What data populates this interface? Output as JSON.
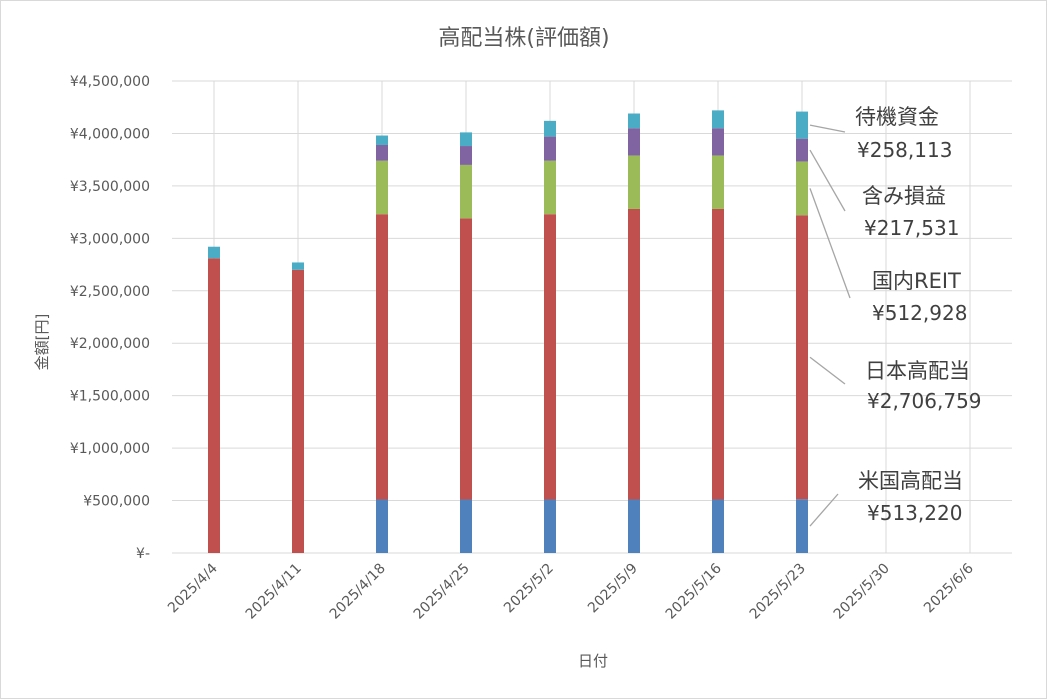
{
  "chart_data": {
    "type": "bar",
    "stacked": true,
    "title": "高配当株(評価額)",
    "xlabel": "日付",
    "ylabel": "金額[円]",
    "ylim": [
      0,
      4500000
    ],
    "y_ticks": [
      "¥-",
      "¥500,000",
      "¥1,000,000",
      "¥1,500,000",
      "¥2,000,000",
      "¥2,500,000",
      "¥3,000,000",
      "¥3,500,000",
      "¥4,000,000",
      "¥4,500,000"
    ],
    "x_ticks": [
      "2025/4/4",
      "2025/4/11",
      "2025/4/18",
      "2025/4/25",
      "2025/5/2",
      "2025/5/9",
      "2025/5/16",
      "2025/5/23",
      "2025/5/30",
      "2025/6/6"
    ],
    "categories": [
      "2025/4/4",
      "2025/4/11",
      "2025/4/18",
      "2025/4/25",
      "2025/5/2",
      "2025/5/9",
      "2025/5/16",
      "2025/5/23"
    ],
    "grid": true,
    "legend": "none",
    "series": [
      {
        "name": "米国高配当",
        "color": "#4f81bd",
        "values": [
          0,
          0,
          510000,
          510000,
          510000,
          510000,
          510000,
          513220
        ]
      },
      {
        "name": "日本高配当",
        "color": "#c0504d",
        "values": [
          2810000,
          2700000,
          2720000,
          2680000,
          2720000,
          2770000,
          2770000,
          2706759
        ]
      },
      {
        "name": "国内REIT",
        "color": "#9bbb59",
        "values": [
          0,
          0,
          510000,
          510000,
          510000,
          510000,
          510000,
          512928
        ]
      },
      {
        "name": "含み損益",
        "color": "#8064a2",
        "values": [
          0,
          0,
          150000,
          180000,
          230000,
          260000,
          260000,
          217531
        ]
      },
      {
        "name": "待機資金",
        "color": "#4bacc6",
        "values": [
          110000,
          70000,
          90000,
          130000,
          150000,
          140000,
          170000,
          258113
        ]
      }
    ],
    "annotations": [
      {
        "series": "待機資金",
        "name": "待機資金",
        "value": "¥258,113"
      },
      {
        "series": "含み損益",
        "name": "含み損益",
        "value": "¥217,531"
      },
      {
        "series": "国内REIT",
        "name": "国内REIT",
        "value": "¥512,928"
      },
      {
        "series": "日本高配当",
        "name": "日本高配当",
        "value": "¥2,706,759"
      },
      {
        "series": "米国高配当",
        "name": "米国高配当",
        "value": "¥513,220"
      }
    ]
  }
}
